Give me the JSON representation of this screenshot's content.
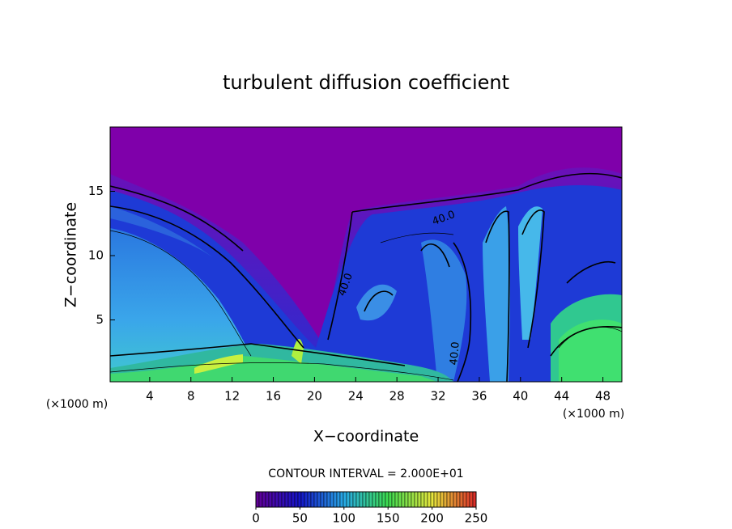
{
  "chart_data": {
    "type": "contour",
    "title": "turbulent diffusion coefficient",
    "x_label": "X−coordinate",
    "y_label": "Z−coordinate",
    "x_unit_label": "(×1000 m)",
    "y_unit_label": "(×1000 m)",
    "xlim": [
      0,
      50
    ],
    "xticks": [
      4,
      8,
      12,
      16,
      20,
      24,
      28,
      32,
      36,
      40,
      44,
      48
    ],
    "ylim": [
      0,
      20
    ],
    "yticks": [
      5,
      10,
      15
    ],
    "contour_labels": [
      "40.0",
      "40.0",
      "40.0"
    ],
    "contour_interval_label": "CONTOUR INTERVAL = 2.000E+01",
    "colorbar": {
      "lim": [
        0,
        250
      ],
      "ticks": [
        0,
        50,
        100,
        150,
        200,
        250
      ]
    }
  }
}
